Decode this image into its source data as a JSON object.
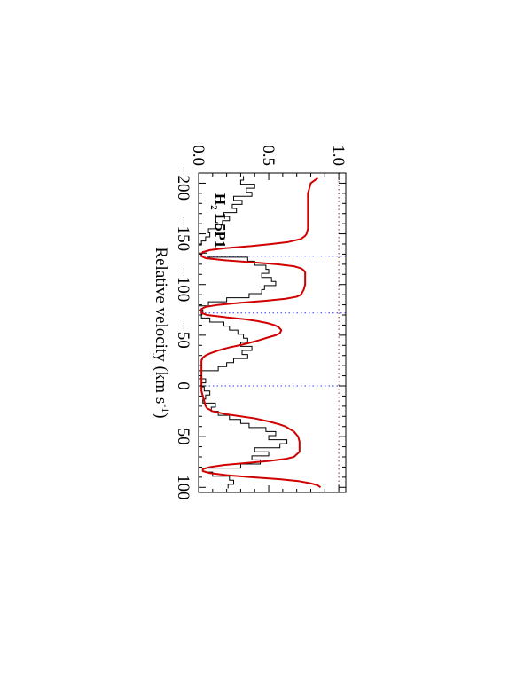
{
  "chart_data": {
    "type": "line",
    "orientation": "rotated-90-clockwise",
    "xlabel": "Relative velocity (km s",
    "xlabel_sup": "-1",
    "xlabel_end": ")",
    "ylabel": "",
    "xlim": [
      -210,
      105
    ],
    "ylim": [
      0.0,
      1.05
    ],
    "xticks": [
      -200,
      -150,
      -100,
      -50,
      0,
      50,
      100
    ],
    "xtick_labels": [
      "−200",
      "−150",
      "−100",
      "−50",
      "0",
      "50",
      "100"
    ],
    "yticks": [
      0.0,
      0.5,
      1.0
    ],
    "ytick_labels": [
      "0.0",
      "0.5",
      "1.0"
    ],
    "annotation": {
      "base": "H",
      "sub": "2",
      "rest": " L5P1",
      "at": {
        "x": -190,
        "y": 0.12
      }
    },
    "reference_lines": [
      {
        "axis": "y",
        "value": 1.0,
        "style": "dotted",
        "color": "#8b2d2d"
      },
      {
        "axis": "y",
        "value": 0.0,
        "style": "dotted",
        "color": "#8b2d2d"
      },
      {
        "axis": "x",
        "value": -128,
        "style": "dotted",
        "color": "#3333ff"
      },
      {
        "axis": "x",
        "value": -72,
        "style": "dotted",
        "color": "#3333ff"
      },
      {
        "axis": "x",
        "value": 0,
        "style": "dotted",
        "color": "#3333ff"
      }
    ],
    "series": [
      {
        "style": "step",
        "color": "#000000",
        "x": [
          -205,
          -201,
          -197,
          -193,
          -189,
          -185,
          -181,
          -177,
          -173,
          -169,
          -165,
          -161,
          -157,
          -153,
          -149,
          -145,
          -141,
          -137,
          -133,
          -129,
          -125,
          -121,
          -117,
          -113,
          -109,
          -105,
          -101,
          -97,
          -93,
          -89,
          -85,
          -81,
          -77,
          -73,
          -69,
          -65,
          -61,
          -57,
          -53,
          -49,
          -45,
          -41,
          -37,
          -33,
          -29,
          -25,
          -21,
          -17,
          -13,
          -9,
          -5,
          -1,
          3,
          7,
          11,
          15,
          19,
          23,
          27,
          31,
          35,
          39,
          43,
          47,
          51,
          55,
          59,
          63,
          67,
          71,
          75,
          79,
          83,
          87,
          91,
          95,
          99
        ],
        "y": [
          0.32,
          0.3,
          0.4,
          0.34,
          0.38,
          0.25,
          0.31,
          0.24,
          0.27,
          0.18,
          0.22,
          0.17,
          0.12,
          0.07,
          0.08,
          0.05,
          0.02,
          -0.01,
          0.0,
          0.06,
          0.35,
          0.4,
          0.48,
          0.5,
          0.45,
          0.52,
          0.55,
          0.47,
          0.45,
          0.36,
          0.2,
          0.07,
          0.0,
          0.03,
          0.02,
          0.08,
          0.18,
          0.22,
          0.28,
          0.32,
          0.35,
          0.3,
          0.38,
          0.31,
          0.35,
          0.25,
          0.2,
          0.14,
          -0.02,
          -0.03,
          0.05,
          0.02,
          0.04,
          0.08,
          0.05,
          0.03,
          0.12,
          0.09,
          0.14,
          0.22,
          0.3,
          0.36,
          0.48,
          0.55,
          0.5,
          0.63,
          0.58,
          0.4,
          0.5,
          0.38,
          0.44,
          0.3,
          0.06,
          0.1,
          0.22,
          0.25,
          0.21
        ]
      },
      {
        "style": "line",
        "color": "#d10000",
        "x": [
          -205,
          -200,
          -195,
          -190,
          -185,
          -180,
          -175,
          -170,
          -165,
          -160,
          -155,
          -150,
          -148,
          -145,
          -142,
          -140,
          -138,
          -136,
          -134,
          -132,
          -130,
          -128,
          -126,
          -124,
          -122,
          -120,
          -118,
          -116,
          -114,
          -112,
          -110,
          -108,
          -105,
          -100,
          -95,
          -90,
          -88,
          -86,
          -84,
          -82,
          -80,
          -78,
          -76,
          -74,
          -72,
          -70,
          -68,
          -66,
          -64,
          -62,
          -60,
          -58,
          -55,
          -52,
          -50,
          -48,
          -45,
          -42,
          -40,
          -38,
          -35,
          -32,
          -30,
          -28,
          -25,
          -22,
          -20,
          -18,
          -15,
          -12,
          -10,
          -8,
          -5,
          0,
          5,
          10,
          15,
          20,
          22,
          25,
          28,
          30,
          32,
          35,
          38,
          40,
          45,
          50,
          55,
          60,
          65,
          70,
          72,
          74,
          76,
          78,
          80,
          82,
          84,
          86,
          88,
          90,
          92,
          94,
          96,
          98,
          100
        ],
        "y": [
          0.85,
          0.8,
          0.79,
          0.78,
          0.78,
          0.78,
          0.78,
          0.78,
          0.78,
          0.78,
          0.78,
          0.77,
          0.76,
          0.73,
          0.64,
          0.52,
          0.38,
          0.2,
          0.08,
          0.03,
          0.02,
          0.02,
          0.05,
          0.18,
          0.38,
          0.56,
          0.68,
          0.73,
          0.75,
          0.76,
          0.76,
          0.76,
          0.76,
          0.76,
          0.75,
          0.73,
          0.7,
          0.62,
          0.48,
          0.3,
          0.14,
          0.05,
          0.02,
          0.02,
          0.02,
          0.06,
          0.18,
          0.32,
          0.42,
          0.49,
          0.54,
          0.57,
          0.59,
          0.58,
          0.55,
          0.5,
          0.43,
          0.35,
          0.29,
          0.22,
          0.14,
          0.08,
          0.05,
          0.03,
          0.02,
          0.02,
          0.02,
          0.02,
          0.02,
          0.02,
          0.02,
          0.02,
          0.02,
          0.02,
          0.02,
          0.03,
          0.04,
          0.05,
          0.06,
          0.1,
          0.2,
          0.3,
          0.4,
          0.5,
          0.58,
          0.62,
          0.68,
          0.71,
          0.72,
          0.72,
          0.72,
          0.68,
          0.62,
          0.5,
          0.34,
          0.18,
          0.08,
          0.03,
          0.03,
          0.08,
          0.2,
          0.38,
          0.58,
          0.72,
          0.8,
          0.85,
          0.87
        ]
      }
    ]
  }
}
